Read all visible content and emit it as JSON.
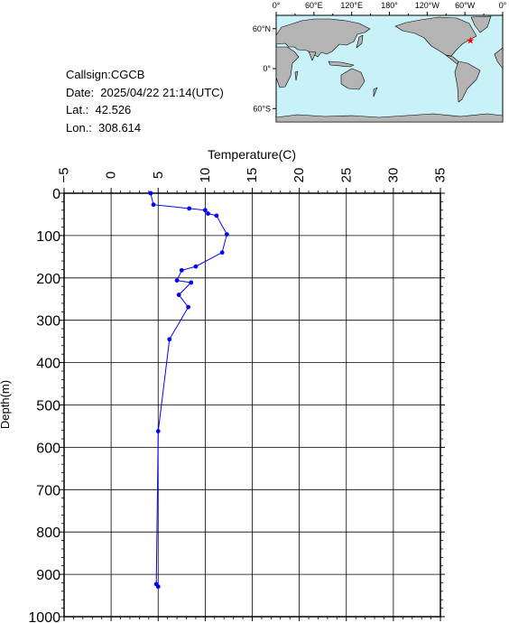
{
  "info": {
    "callsign": "Callsign:CGCB",
    "date": "Date:  2025/04/22 21:14(UTC)",
    "lat": "Lat.:  42.526",
    "lon": "Lon.:  308.614"
  },
  "map": {
    "top_labels": [
      "0°",
      "60°E",
      "120°E",
      "180°",
      "120°W",
      "60°W",
      "0°"
    ],
    "left_labels": [
      "60°N",
      "0°",
      "60°S"
    ],
    "ocean_color": "#c8f2f8",
    "land_color": "#b4b4b4",
    "marker": {
      "lat": 42.526,
      "lon": 308.614,
      "symbol": "star",
      "color": "#ff0000"
    }
  },
  "chart_data": {
    "type": "line",
    "xlabel": "Temperature(C)",
    "ylabel": "Depth(m)",
    "xlim": [
      -5,
      35
    ],
    "ylim": [
      1000,
      0
    ],
    "x_ticks": [
      -5,
      0,
      5,
      10,
      15,
      20,
      25,
      30,
      35
    ],
    "x_tick_labels": [
      "−5",
      "0",
      "5",
      "10",
      "15",
      "20",
      "25",
      "30",
      "35"
    ],
    "y_ticks": [
      0,
      100,
      200,
      300,
      400,
      500,
      600,
      700,
      800,
      900,
      1000
    ],
    "y_tick_labels": [
      "0",
      "100",
      "200",
      "300",
      "400",
      "500",
      "600",
      "700",
      "800",
      "900",
      "1000"
    ],
    "grid": true,
    "series": [
      {
        "color": "#0000ff",
        "points": [
          {
            "temp": 4.2,
            "depth": 0
          },
          {
            "temp": 4.5,
            "depth": 27
          },
          {
            "temp": 8.3,
            "depth": 36
          },
          {
            "temp": 10.0,
            "depth": 40
          },
          {
            "temp": 10.3,
            "depth": 48
          },
          {
            "temp": 11.2,
            "depth": 53
          },
          {
            "temp": 12.3,
            "depth": 97
          },
          {
            "temp": 11.8,
            "depth": 140
          },
          {
            "temp": 9.0,
            "depth": 173
          },
          {
            "temp": 7.5,
            "depth": 182
          },
          {
            "temp": 7.0,
            "depth": 206
          },
          {
            "temp": 8.5,
            "depth": 211
          },
          {
            "temp": 7.2,
            "depth": 240
          },
          {
            "temp": 8.2,
            "depth": 269
          },
          {
            "temp": 6.2,
            "depth": 345
          },
          {
            "temp": 5.0,
            "depth": 562
          },
          {
            "temp": 4.8,
            "depth": 923
          },
          {
            "temp": 5.0,
            "depth": 929
          }
        ]
      }
    ]
  }
}
